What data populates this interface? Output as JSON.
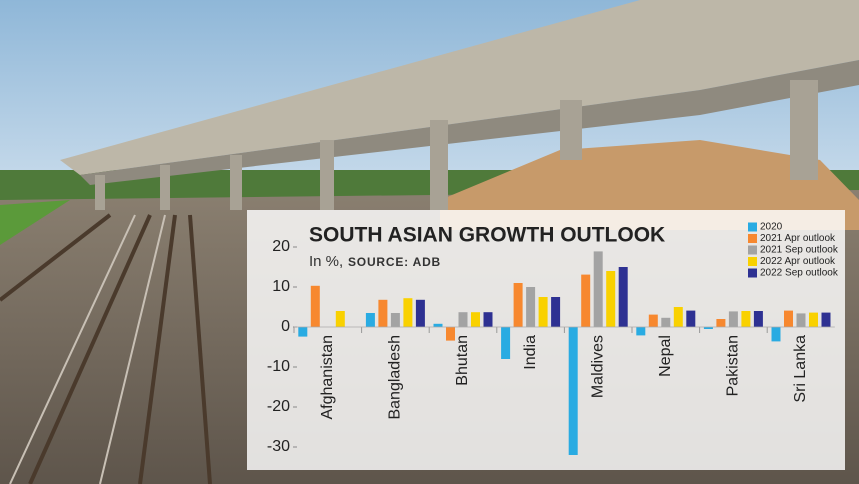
{
  "chart_data": {
    "type": "bar",
    "title": "SOUTH ASIAN GROWTH OUTLOOK",
    "subtitle": "In %,",
    "source": "SOURCE: ADB",
    "categories": [
      "Afghanistan",
      "Bangladesh",
      "Bhutan",
      "India",
      "Maldives",
      "Nepal",
      "Pakistan",
      "Sri Lanka"
    ],
    "series": [
      {
        "name": "2020",
        "color": "#29abe2",
        "values": [
          -2.4,
          3.5,
          0.8,
          -8,
          -32,
          -2.1,
          -0.5,
          -3.6
        ]
      },
      {
        "name": "2021 Apr outlook",
        "color": "#f7882f",
        "values": [
          10.3,
          6.8,
          -3.4,
          11,
          13.1,
          3.1,
          2.0,
          4.1
        ]
      },
      {
        "name": "2021 Sep outlook",
        "color": "#a3a3a3",
        "values": [
          null,
          3.5,
          3.7,
          10,
          18.9,
          2.3,
          3.9,
          3.4
        ]
      },
      {
        "name": "2022 Apr outlook",
        "color": "#f9d100",
        "values": [
          4,
          7.2,
          3.7,
          7.5,
          14,
          5.0,
          4.0,
          3.6
        ]
      },
      {
        "name": "2022 Sep outlook",
        "color": "#2e3192",
        "values": [
          null,
          6.8,
          3.7,
          7.5,
          15,
          4.1,
          4.0,
          3.6
        ]
      }
    ],
    "ylim": [
      -33,
      24
    ],
    "yticks": [
      20,
      10,
      0,
      -10,
      -20,
      -30
    ]
  }
}
